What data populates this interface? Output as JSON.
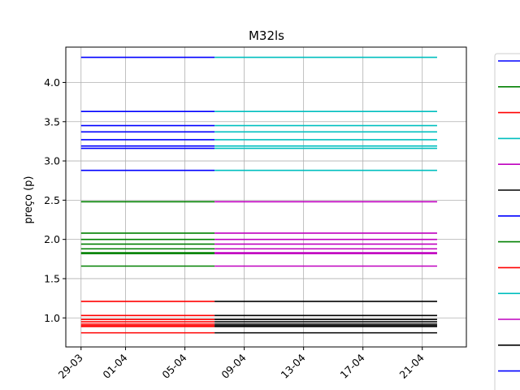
{
  "chart_data": {
    "type": "line",
    "title": "M32ls",
    "xlabel": "",
    "ylabel": "preço (p)",
    "grid": true,
    "legend": "right (partially cut off)",
    "x_ticks": [
      "29-03",
      "01-04",
      "05-04",
      "09-04",
      "13-04",
      "17-04",
      "21-04"
    ],
    "y_ticks": [
      "1.0",
      "1.5",
      "2.0",
      "2.5",
      "3.0",
      "3.5",
      "4.0"
    ],
    "ylim": [
      0.63,
      4.45
    ],
    "xlim": [
      "2021-03-28",
      "2021-04-24"
    ],
    "colors": {
      "blue": "#0000ff",
      "green": "#008000",
      "red": "#ff0000",
      "cyan": "#00bfbf",
      "magenta": "#bf00bf",
      "black": "#000000"
    },
    "series": [
      {
        "color": "blue",
        "x_start": "2021-03-29",
        "x_end": "2021-04-07",
        "values": [
          4.32,
          3.63,
          3.45,
          3.37,
          3.27,
          3.19,
          3.16,
          2.88
        ]
      },
      {
        "color": "green",
        "x_start": "2021-03-29",
        "x_end": "2021-04-07",
        "values": [
          2.48,
          2.08,
          2.0,
          1.94,
          1.88,
          1.83,
          1.82,
          1.66
        ]
      },
      {
        "color": "red",
        "x_start": "2021-03-29",
        "x_end": "2021-04-07",
        "values": [
          1.21,
          1.03,
          0.98,
          0.95,
          0.92,
          0.9,
          0.89,
          0.81
        ]
      },
      {
        "color": "cyan",
        "x_start": "2021-04-07",
        "x_end": "2021-04-22",
        "values": [
          4.32,
          3.63,
          3.45,
          3.37,
          3.27,
          3.19,
          3.16,
          2.88
        ]
      },
      {
        "color": "magenta",
        "x_start": "2021-04-07",
        "x_end": "2021-04-22",
        "values": [
          2.48,
          2.08,
          2.0,
          1.94,
          1.88,
          1.83,
          1.82,
          1.66
        ]
      },
      {
        "color": "black",
        "x_start": "2021-04-07",
        "x_end": "2021-04-22",
        "values": [
          1.21,
          1.03,
          0.98,
          0.95,
          0.92,
          0.9,
          0.89,
          0.81
        ]
      }
    ],
    "legend_colors": [
      "blue",
      "green",
      "red",
      "cyan",
      "magenta",
      "black",
      "blue",
      "green",
      "red",
      "cyan",
      "magenta",
      "black",
      "blue"
    ]
  }
}
